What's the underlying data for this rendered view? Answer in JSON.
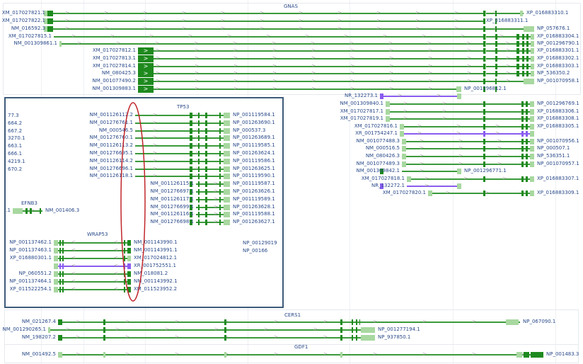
{
  "colors": {
    "coding": "#3a9a3a",
    "exon": "#1e8a1e",
    "utr": "#a8d8a0",
    "noncoding": "#8a5cf0",
    "label": "#2a4a8a",
    "inset_border": "#3e5b7a",
    "highlight": "#c0262a"
  },
  "genes": {
    "GNAS": {
      "title": "GNAS",
      "rows": [
        [
          "XM_017027821.1",
          "XP_016883310.1"
        ],
        [
          "XM_017027822.1",
          "XP_016883311.1"
        ],
        [
          "NM_016592.3",
          "NP_057676.1"
        ],
        [
          "XM_017027815.1",
          "XP_016883304.1"
        ],
        [
          "NM_001309861.1",
          "NP_001296790.1"
        ],
        [
          "XM_017027812.1",
          "XP_016883301.1"
        ],
        [
          "XM_017027813.1",
          "XP_016883302.1"
        ],
        [
          "XM_017027814.1",
          "XP_016883303.1"
        ],
        [
          "NM_080425.3",
          "NP_536350.2"
        ],
        [
          "NM_001077490.2",
          "NP_001070958.1"
        ],
        [
          "NM_001309883.1",
          "NP_001296812.1"
        ],
        [
          "NR_132273.1",
          ""
        ],
        [
          "NM_001309840.1",
          "NP_001296769.1"
        ],
        [
          "XM_017027817.1",
          "XP_016883306.1"
        ],
        [
          "XM_017027819.1",
          "XP_016883308.1"
        ],
        [
          "XM_017027816.1",
          "XP_016883305.1"
        ],
        [
          "XR_001754247.1",
          ""
        ],
        [
          "NM_001077488.3",
          "NP_001070956.1"
        ],
        [
          "NM_000516.5",
          "NP_000507.1"
        ],
        [
          "NM_080426.3",
          "NP_536351.1"
        ],
        [
          "NM_001077489.3",
          "NP_001070957.1"
        ],
        [
          "NM_001309842.1",
          "NP_001296771.1"
        ],
        [
          "XM_017027818.1",
          "XP_016883307.1"
        ],
        [
          "NR_132272.1",
          ""
        ],
        [
          "XM_017027820.1",
          "XP_016883309.1"
        ]
      ]
    },
    "TP53": {
      "title": "TP53",
      "rows": [
        [
          "NM_001126112.2",
          "NP_001119584.1"
        ],
        [
          "NM_001276761.1",
          "NP_001263690.1"
        ],
        [
          "NM_000546.5",
          "NP_000537.3"
        ],
        [
          "NM_001276760.1",
          "NP_001263689.1"
        ],
        [
          "NM_001126113.2",
          "NP_001119585.1"
        ],
        [
          "NM_001276695.1",
          "NP_001263624.1"
        ],
        [
          "NM_001126114.2",
          "NP_001119586.1"
        ],
        [
          "NM_001276696.1",
          "NP_001263625.1"
        ],
        [
          "NM_001126118.1",
          "NP_001119590.1"
        ],
        [
          "NM_001126115.1",
          "NP_001119587.1"
        ],
        [
          "NM_001276697.1",
          "NP_001263626.1"
        ],
        [
          "NM_001126117.1",
          "NP_001119589.1"
        ],
        [
          "NM_001276699.1",
          "NP_001263628.1"
        ],
        [
          "NM_001126116.1",
          "NP_001119588.1"
        ],
        [
          "NM_001276698.1",
          "NP_001263627.1"
        ]
      ]
    },
    "partial_left": [
      "77.3",
      "664.2",
      "667.2",
      "3270.1",
      "663.1",
      "666.1",
      "4219.1",
      "670.2"
    ],
    "EFNB3": {
      "title": "EFNB3",
      "rows": [
        [
          ".1",
          "NM_001406.3"
        ]
      ]
    },
    "WRAP53": {
      "title": "WRAP53",
      "rows": [
        [
          "NP_001137462.1",
          "NM_001143990.1"
        ],
        [
          "NP_001137463.1",
          "NM_001143991.1"
        ],
        [
          "XP_016880301.1",
          "XM_017024812.1"
        ],
        [
          "",
          "XR_001752551.1"
        ],
        [
          "NP_060551.2",
          "NM_018081.2"
        ],
        [
          "NP_001137464.1",
          "NM_001143992.1"
        ],
        [
          "XP_011522254.1",
          "XM_011523952.2"
        ]
      ]
    },
    "partial_right": [
      "NP_00129019",
      "NP_00166"
    ],
    "CERS1": {
      "title": "CERS1",
      "rows": [
        [
          "NM_021267.4",
          "NP_067090.1"
        ],
        [
          "NM_001290265.1",
          "NP_001277194.1"
        ],
        [
          "NM_198207.2",
          "NP_937850.1"
        ]
      ]
    },
    "GDF1": {
      "title": "GDF1",
      "rows": [
        [
          "NM_001492.5",
          "NP_001483.3"
        ]
      ]
    }
  }
}
